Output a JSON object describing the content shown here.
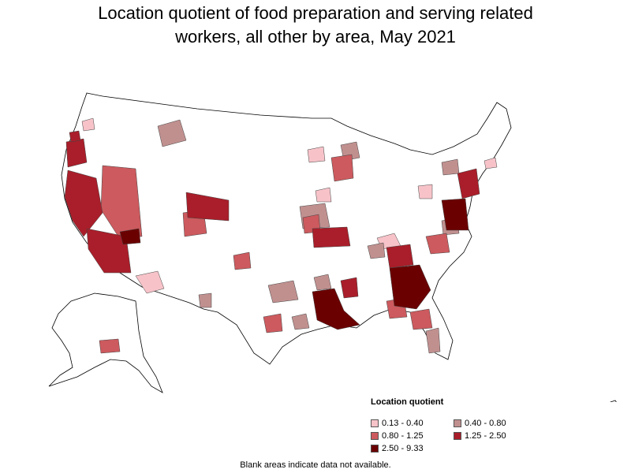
{
  "title_line1": "Location quotient of food preparation and serving related",
  "title_line2": "workers, all other by area, May 2021",
  "legend": {
    "title": "Location quotient",
    "items": [
      {
        "label": "0.13 - 0.40",
        "color": "#f7c3c9"
      },
      {
        "label": "0.40 - 0.80",
        "color": "#c0908f"
      },
      {
        "label": "0.80 - 1.25",
        "color": "#cc5a5e"
      },
      {
        "label": "1.25 - 2.50",
        "color": "#a91e2a"
      },
      {
        "label": "2.50 - 9.33",
        "color": "#6b0000"
      }
    ]
  },
  "footnote": "Blank areas indicate data not available."
}
